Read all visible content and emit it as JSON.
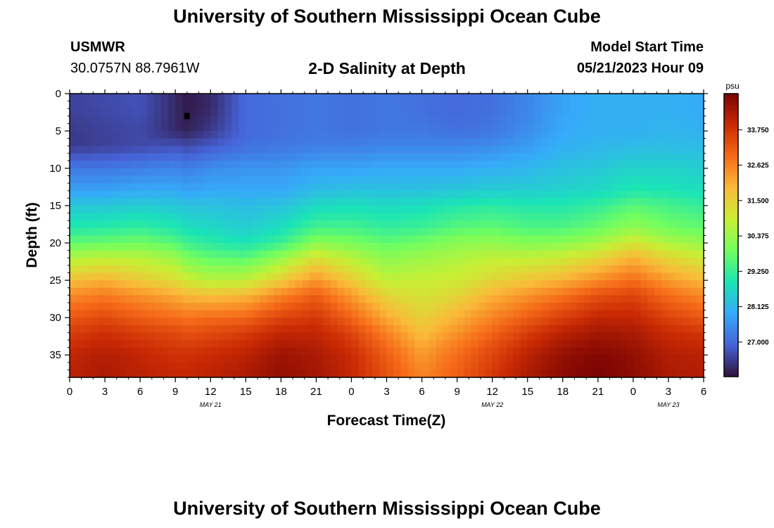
{
  "header": {
    "title": "University of Southern Mississippi Ocean Cube",
    "station_id": "USMWR",
    "coordinates": "30.0757N  88.7961W",
    "start_label": "Model Start Time",
    "start_value": "05/21/2023 Hour 09"
  },
  "footer": {
    "title": "University of Southern Mississippi Ocean Cube"
  },
  "colors": {
    "colormap": [
      "#30123b",
      "#4662d7",
      "#36aaf9",
      "#1ae4b6",
      "#72fe5e",
      "#c8ef34",
      "#faba39",
      "#f66b19",
      "#ca2a04",
      "#7a0403"
    ]
  },
  "chart_data": {
    "type": "heatmap",
    "title": "2-D Salinity at Depth",
    "xlabel": "Forecast Time(Z)",
    "ylabel": "Depth (ft)",
    "x_tick_labels": [
      "0",
      "3",
      "6",
      "9",
      "12",
      "15",
      "18",
      "21",
      "0",
      "3",
      "6",
      "9",
      "12",
      "15",
      "18",
      "21",
      "0",
      "3",
      "6"
    ],
    "x_range_hours": [
      0,
      54
    ],
    "day_labels": [
      {
        "label": "MAY 21",
        "hour": 12
      },
      {
        "label": "MAY 22",
        "hour": 36
      },
      {
        "label": "MAY 23",
        "hour": 51
      }
    ],
    "y_ticks": [
      0,
      5,
      10,
      15,
      20,
      25,
      30,
      35
    ],
    "ylim": [
      0,
      38
    ],
    "y_inverted": true,
    "colorbar": {
      "unit": "psu",
      "ticks": [
        "33.750",
        "32.625",
        "31.500",
        "30.375",
        "29.250",
        "28.125",
        "27.000"
      ],
      "min": 25.9,
      "max": 34.9
    },
    "marker": {
      "hour": 10,
      "depth_ft": 3
    },
    "profile_hours": [
      0,
      3,
      6,
      9,
      10,
      12,
      15,
      18,
      21,
      24,
      27,
      30,
      33,
      36,
      39,
      42,
      45,
      48,
      51,
      54
    ],
    "profile_depths_ft": [
      0,
      2,
      5,
      7,
      10,
      13,
      15,
      18,
      20,
      22,
      25,
      27,
      30,
      32,
      35,
      38
    ],
    "salinity_psu": [
      [
        26.5,
        26.5,
        26.4,
        26.4,
        27.2,
        27.8,
        28.4,
        29.0,
        29.7,
        30.6,
        31.8,
        32.5,
        33.2,
        33.6,
        34.0,
        34.1
      ],
      [
        26.6,
        26.6,
        26.5,
        26.5,
        27.2,
        27.8,
        28.4,
        29.1,
        29.8,
        30.8,
        32.0,
        32.7,
        33.4,
        33.8,
        34.2,
        34.3
      ],
      [
        26.7,
        26.7,
        26.6,
        26.6,
        27.3,
        27.9,
        28.5,
        29.2,
        29.9,
        30.7,
        31.6,
        32.4,
        33.1,
        33.6,
        34.0,
        34.1
      ],
      [
        26.2,
        26.2,
        26.2,
        26.7,
        27.4,
        27.9,
        28.4,
        29.0,
        29.6,
        30.4,
        31.3,
        32.1,
        32.9,
        33.4,
        33.8,
        34.0
      ],
      [
        26.0,
        26.0,
        26.1,
        26.6,
        27.3,
        27.8,
        28.3,
        28.8,
        29.3,
        30.0,
        31.0,
        31.9,
        32.8,
        33.3,
        33.8,
        34.0
      ],
      [
        26.2,
        26.2,
        26.4,
        26.8,
        27.5,
        27.9,
        28.3,
        28.7,
        29.1,
        29.7,
        30.7,
        31.8,
        32.9,
        33.4,
        33.9,
        34.1
      ],
      [
        27.0,
        27.0,
        27.0,
        27.1,
        27.6,
        27.9,
        28.2,
        28.5,
        28.9,
        29.6,
        30.8,
        31.9,
        33.0,
        33.6,
        34.1,
        34.3
      ],
      [
        27.1,
        27.1,
        27.1,
        27.2,
        27.6,
        27.9,
        28.3,
        28.8,
        29.3,
        30.3,
        31.6,
        32.6,
        33.5,
        34.0,
        34.5,
        34.6
      ],
      [
        27.2,
        27.2,
        27.2,
        27.3,
        27.8,
        28.2,
        28.7,
        29.4,
        30.2,
        31.2,
        32.4,
        33.1,
        33.7,
        34.0,
        34.3,
        34.4
      ],
      [
        27.1,
        27.1,
        27.1,
        27.3,
        27.8,
        28.3,
        28.8,
        29.4,
        30.0,
        30.7,
        31.6,
        32.3,
        33.0,
        33.5,
        33.9,
        34.0
      ],
      [
        27.2,
        27.2,
        27.2,
        27.4,
        27.9,
        28.3,
        28.7,
        29.2,
        29.7,
        30.2,
        30.8,
        31.4,
        32.1,
        32.6,
        33.1,
        33.3
      ],
      [
        27.1,
        27.1,
        27.2,
        27.4,
        27.9,
        28.3,
        28.8,
        29.3,
        29.9,
        30.4,
        30.9,
        31.1,
        31.5,
        31.8,
        32.3,
        32.6
      ],
      [
        27.0,
        27.0,
        27.1,
        27.4,
        27.9,
        28.4,
        29.0,
        29.6,
        30.2,
        30.6,
        31.0,
        31.4,
        32.0,
        32.4,
        32.9,
        33.1
      ],
      [
        27.1,
        27.1,
        27.2,
        27.5,
        28.0,
        28.5,
        29.1,
        29.7,
        30.3,
        30.8,
        31.4,
        32.0,
        32.6,
        33.0,
        33.5,
        33.7
      ],
      [
        27.4,
        27.4,
        27.5,
        27.7,
        28.1,
        28.5,
        29.0,
        29.5,
        30.1,
        30.8,
        31.7,
        32.4,
        33.1,
        33.6,
        34.1,
        34.3
      ],
      [
        27.8,
        27.8,
        27.9,
        28.0,
        28.3,
        28.6,
        29.0,
        29.5,
        30.2,
        31.0,
        32.0,
        32.8,
        33.6,
        34.1,
        34.6,
        34.7
      ],
      [
        28.0,
        28.0,
        28.0,
        28.1,
        28.4,
        28.7,
        29.2,
        29.8,
        30.5,
        31.4,
        32.5,
        33.3,
        34.0,
        34.4,
        34.8,
        34.9
      ],
      [
        28.0,
        28.0,
        28.0,
        28.2,
        28.6,
        29.0,
        29.6,
        30.3,
        31.1,
        32.0,
        32.9,
        33.5,
        34.0,
        34.3,
        34.6,
        34.7
      ],
      [
        28.0,
        28.0,
        28.1,
        28.2,
        28.6,
        28.9,
        29.4,
        29.9,
        30.6,
        31.4,
        32.3,
        32.9,
        33.5,
        33.9,
        34.2,
        34.3
      ],
      [
        27.9,
        27.9,
        28.0,
        28.2,
        28.5,
        28.8,
        29.2,
        29.7,
        30.3,
        31.0,
        31.9,
        32.5,
        33.2,
        33.7,
        34.1,
        34.2
      ]
    ]
  }
}
